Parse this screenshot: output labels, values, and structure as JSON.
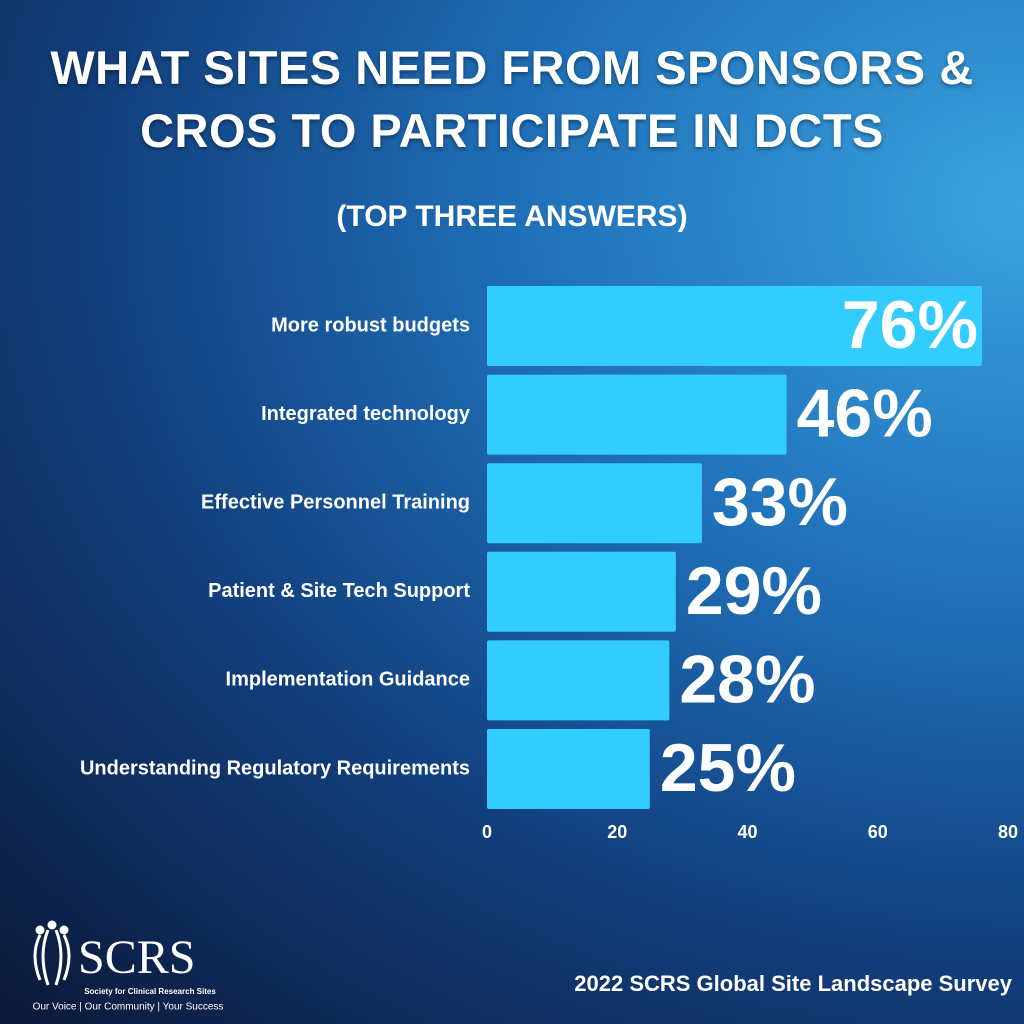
{
  "chart_data": {
    "type": "bar",
    "orientation": "horizontal",
    "title": "WHAT SITES NEED FROM SPONSORS & CROS TO PARTICIPATE IN DCTS",
    "subtitle": "(TOP THREE ANSWERS)",
    "categories": [
      "More robust budgets",
      "Integrated technology",
      "Effective Personnel Training",
      "Patient & Site Tech Support",
      "Implementation Guidance",
      "Understanding Regulatory Requirements"
    ],
    "values": [
      76,
      46,
      33,
      29,
      28,
      25
    ],
    "value_labels": [
      "76%",
      "46%",
      "33%",
      "29%",
      "28%",
      "25%"
    ],
    "color": "#33ccff",
    "xlim": [
      0,
      80
    ],
    "xticks": [
      0,
      20,
      40,
      60,
      80
    ],
    "grid": false,
    "source": "2022 SCRS Global Site Landscape Survey"
  },
  "logo": {
    "name": "SCRS",
    "full_name": "Society for Clinical Research Sites",
    "tagline": "Our Voice | Our Community | Your Success"
  }
}
